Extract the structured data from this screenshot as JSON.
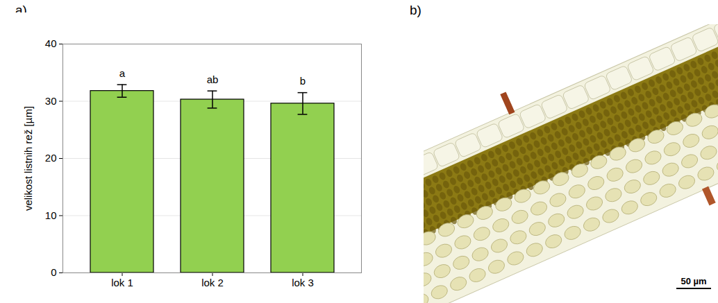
{
  "chart_data": {
    "type": "bar",
    "panel_label": "a)",
    "ylabel": "velikost listnih rež [µm]",
    "categories": [
      "lok 1",
      "lok 2",
      "lok 3"
    ],
    "values": [
      31.8,
      30.3,
      29.6
    ],
    "errors": [
      1.1,
      1.5,
      1.9
    ],
    "annotations": [
      "a",
      "ab",
      "b"
    ],
    "color": "#92d050",
    "ylim": [
      0,
      40
    ],
    "yticks": [
      0,
      10,
      20,
      30,
      40
    ],
    "grid": true
  },
  "micrograph": {
    "panel_label": "b)",
    "scale_bar": "50 µm"
  }
}
